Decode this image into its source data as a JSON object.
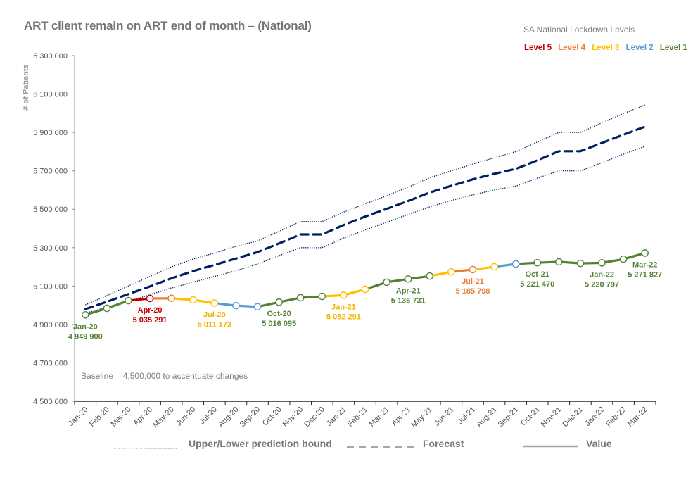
{
  "chart_data": {
    "type": "line",
    "title": "ART client remain on ART end of month – (National)",
    "xlabel": "",
    "ylabel": "# of Patients",
    "ylim": [
      4500000,
      6300000
    ],
    "yticks": [
      4500000,
      4700000,
      4900000,
      5100000,
      5300000,
      5500000,
      5700000,
      5900000,
      6100000,
      6300000
    ],
    "ytick_labels": [
      "4 500 000",
      "4 700 000",
      "4 900 000",
      "5 100 000",
      "5 300 000",
      "5 500 000",
      "5 700 000",
      "5 900 000",
      "6 100 000",
      "6 300 000"
    ],
    "grid": false,
    "categories": [
      "Jan-20",
      "Feb-20",
      "Mar-20",
      "Apr-20",
      "May-20",
      "Jun-20",
      "Jul-20",
      "Aug-20",
      "Sep-20",
      "Oct-20",
      "Nov-20",
      "Dec-20",
      "Jan-21",
      "Feb-21",
      "Mar-21",
      "Apr-21",
      "May-21",
      "Jun-21",
      "Jul-21",
      "Aug-21",
      "Sep-21",
      "Oct-21",
      "Nov-21",
      "Dec-21",
      "Jan-22",
      "Feb-22",
      "Mar-22"
    ],
    "series": [
      {
        "name": "Value",
        "style": "solid-markers",
        "values": [
          4949900,
          4984000,
          5024000,
          5035291,
          5036000,
          5028000,
          5011173,
          4998000,
          4992000,
          5016095,
          5039000,
          5046000,
          5052291,
          5083000,
          5120000,
          5136731,
          5152000,
          5174000,
          5185798,
          5200000,
          5215000,
          5221470,
          5226000,
          5218000,
          5220797,
          5240000,
          5271827
        ],
        "segment_levels": [
          1,
          1,
          5,
          4,
          3,
          3,
          2,
          2,
          1,
          1,
          1,
          3,
          3,
          1,
          1,
          1,
          3,
          4,
          3,
          2,
          1,
          1,
          1,
          1,
          1,
          1
        ],
        "point_levels": [
          1,
          1,
          1,
          5,
          4,
          3,
          3,
          2,
          2,
          1,
          1,
          1,
          3,
          3,
          1,
          1,
          1,
          3,
          4,
          3,
          2,
          1,
          1,
          1,
          1,
          1,
          1
        ]
      },
      {
        "name": "Forecast",
        "style": "dashed",
        "values": [
          4980000,
          5018000,
          5058000,
          5098000,
          5140000,
          5178000,
          5210000,
          5243000,
          5277000,
          5322000,
          5369000,
          5369000,
          5418000,
          5462000,
          5502000,
          5543000,
          5587000,
          5622000,
          5656000,
          5685000,
          5710000,
          5755000,
          5802000,
          5802000,
          5845000,
          5888000,
          5930000
        ]
      },
      {
        "name": "Upper prediction bound",
        "style": "dotted",
        "values": [
          5002000,
          5050000,
          5100000,
          5150000,
          5200000,
          5240000,
          5272000,
          5307000,
          5335000,
          5385000,
          5436000,
          5436000,
          5485000,
          5528000,
          5570000,
          5615000,
          5664000,
          5700000,
          5735000,
          5768000,
          5800000,
          5850000,
          5900000,
          5900000,
          5950000,
          5998000,
          6043000
        ]
      },
      {
        "name": "Lower prediction bound",
        "style": "dotted",
        "values": [
          4958000,
          4990000,
          5020000,
          5055000,
          5090000,
          5120000,
          5150000,
          5180000,
          5215000,
          5258000,
          5300000,
          5300000,
          5350000,
          5392000,
          5432000,
          5473000,
          5512000,
          5545000,
          5575000,
          5600000,
          5620000,
          5662000,
          5700000,
          5700000,
          5742000,
          5787000,
          5827000
        ]
      }
    ],
    "data_labels": [
      {
        "index": 0,
        "month": "Jan-20",
        "value": "4 949 900",
        "level": 1,
        "pos": "below"
      },
      {
        "index": 3,
        "month": "Apr-20",
        "value": "5 035 291",
        "level": 5,
        "pos": "below"
      },
      {
        "index": 6,
        "month": "Jul-20",
        "value": "5 011 173",
        "level": 3,
        "pos": "below"
      },
      {
        "index": 9,
        "month": "Oct-20",
        "value": "5 016 095",
        "level": 1,
        "pos": "below"
      },
      {
        "index": 12,
        "month": "Jan-21",
        "value": "5 052 291",
        "level": 3,
        "pos": "below"
      },
      {
        "index": 15,
        "month": "Apr-21",
        "value": "5 136 731",
        "level": 1,
        "pos": "below"
      },
      {
        "index": 18,
        "month": "Jul-21",
        "value": "5 185 798",
        "level": 4,
        "pos": "below"
      },
      {
        "index": 21,
        "month": "Oct-21",
        "value": "5 221 470",
        "level": 1,
        "pos": "below"
      },
      {
        "index": 24,
        "month": "Jan-22",
        "value": "5 220 797",
        "level": 1,
        "pos": "below"
      },
      {
        "index": 26,
        "month": "Mar-22",
        "value": "5 271 827",
        "level": 1,
        "pos": "below"
      }
    ],
    "legend": {
      "placement": "bottom",
      "entries": [
        {
          "label": "Upper/Lower prediction bound",
          "style": "dotted"
        },
        {
          "label": "Forecast",
          "style": "dashed"
        },
        {
          "label": "Value",
          "style": "solid"
        }
      ]
    },
    "annotations": [
      "Baseline = 4,500,000 to accentuate changes"
    ]
  },
  "lockdown_legend": {
    "title": "SA National Lockdown Levels",
    "levels": [
      {
        "label": "Level 5",
        "level": 5,
        "color": "#c00000"
      },
      {
        "label": "Level 4",
        "level": 4,
        "color": "#ed7d31"
      },
      {
        "label": "Level 3",
        "level": 3,
        "color": "#ffc000"
      },
      {
        "label": "Level 2",
        "level": 2,
        "color": "#5b9bd5"
      },
      {
        "label": "Level 1",
        "level": 1,
        "color": "#548235"
      }
    ]
  },
  "colors": {
    "forecast": "#002060",
    "bounds": "#002060",
    "legend_gray": "#a6a6a6",
    "axis": "#404040",
    "level_5": "#c00000",
    "level_4": "#ed7d31",
    "level_3": "#ffc000",
    "level_2": "#5b9bd5",
    "level_1": "#548235",
    "level_3_label": "#f4b400",
    "level_1_label": "#548235"
  }
}
